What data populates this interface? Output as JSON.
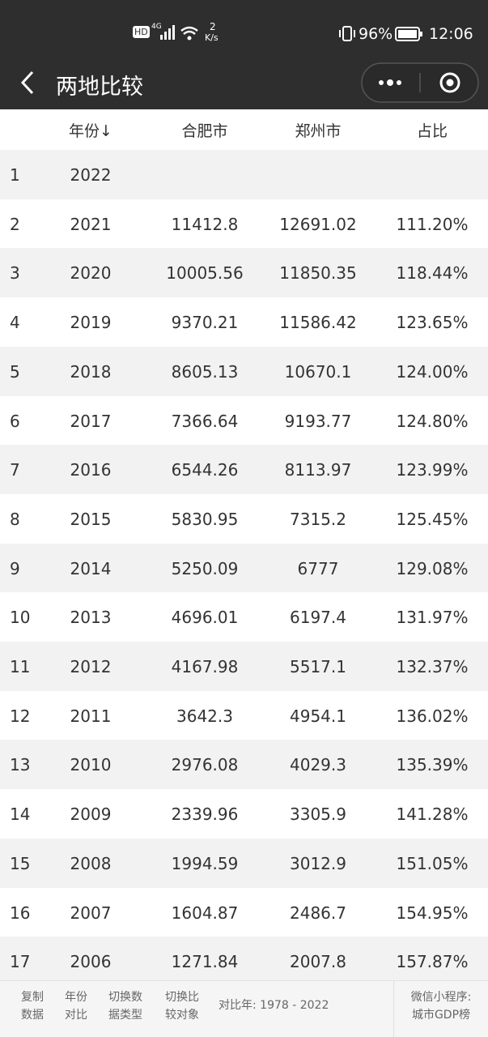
{
  "status_bar": {
    "hd": "HD",
    "network": "4G",
    "speed_value": "2",
    "speed_unit": "K/s",
    "battery": "96%",
    "time": "12:06"
  },
  "header": {
    "title": "两地比较"
  },
  "table": {
    "columns": [
      "年份↓",
      "合肥市",
      "郑州市",
      "占比"
    ],
    "rows": [
      [
        "1",
        "2022"
      ],
      [
        "2",
        "2021",
        "11412.8",
        "12691.02",
        "111.20%"
      ],
      [
        "3",
        "2020",
        "10005.56",
        "11850.35",
        "118.44%"
      ],
      [
        "4",
        "2019",
        "9370.21",
        "11586.42",
        "123.65%"
      ],
      [
        "5",
        "2018",
        "8605.13",
        "10670.1",
        "124.00%"
      ],
      [
        "6",
        "2017",
        "7366.64",
        "9193.77",
        "124.80%"
      ],
      [
        "7",
        "2016",
        "6544.26",
        "8113.97",
        "123.99%"
      ],
      [
        "8",
        "2015",
        "5830.95",
        "7315.2",
        "125.45%"
      ],
      [
        "9",
        "2014",
        "5250.09",
        "6777",
        "129.08%"
      ],
      [
        "10",
        "2013",
        "4696.01",
        "6197.4",
        "131.97%"
      ],
      [
        "11",
        "2012",
        "4167.98",
        "5517.1",
        "132.37%"
      ],
      [
        "12",
        "2011",
        "3642.3",
        "4954.1",
        "136.02%"
      ],
      [
        "13",
        "2010",
        "2976.08",
        "4029.3",
        "135.39%"
      ],
      [
        "14",
        "2009",
        "2339.96",
        "3305.9",
        "141.28%"
      ],
      [
        "15",
        "2008",
        "1994.59",
        "3012.9",
        "151.05%"
      ],
      [
        "16",
        "2007",
        "1604.87",
        "2486.7",
        "154.95%"
      ],
      [
        "17",
        "2006",
        "1271.84",
        "2007.8",
        "157.87%"
      ]
    ]
  },
  "footer": {
    "buttons": [
      [
        "复制",
        "数据"
      ],
      [
        "年份",
        "对比"
      ],
      [
        "切换数",
        "据类型"
      ],
      [
        "切换比",
        "较对象"
      ]
    ],
    "compare_years": "对比年:  1978 - 2022",
    "promo": [
      "微信小程序:",
      "城市GDP榜"
    ]
  }
}
